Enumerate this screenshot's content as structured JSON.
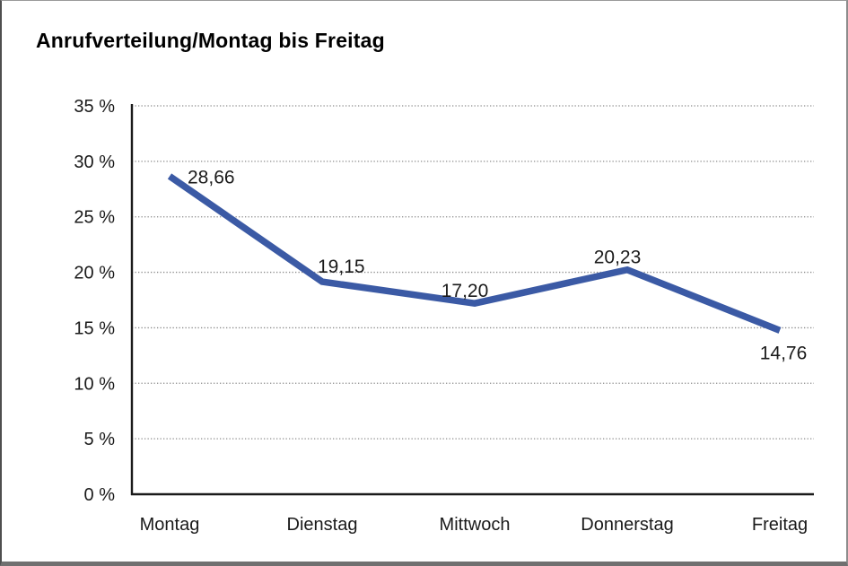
{
  "title": "Anrufverteilung/Montag bis Freitag",
  "chart_data": {
    "type": "line",
    "title": "Anrufverteilung/Montag bis Freitag",
    "categories": [
      "Montag",
      "Dienstag",
      "Mittwoch",
      "Donnerstag",
      "Freitag"
    ],
    "values": [
      28.66,
      19.15,
      17.2,
      20.23,
      14.76
    ],
    "value_labels": [
      "28,66",
      "19,15",
      "17,20",
      "20,23",
      "14,76"
    ],
    "value_label_positions": [
      "right",
      "above-start",
      "above",
      "above",
      "below"
    ],
    "series_name": "Anrufverteilung",
    "xlabel": "",
    "ylabel": "",
    "ylim": [
      0,
      35
    ],
    "ytick_step": 5,
    "ytick_labels": [
      "0 %",
      "5 %",
      "10 %",
      "15 %",
      "20 %",
      "25 %",
      "30 %",
      "35 %"
    ],
    "grid": "horizontal-dotted",
    "legend": "none",
    "colors": {
      "line": "#3b5aa5",
      "axis": "#1a1a1a",
      "grid": "#8a8a8a",
      "text": "#1a1a1a"
    }
  }
}
